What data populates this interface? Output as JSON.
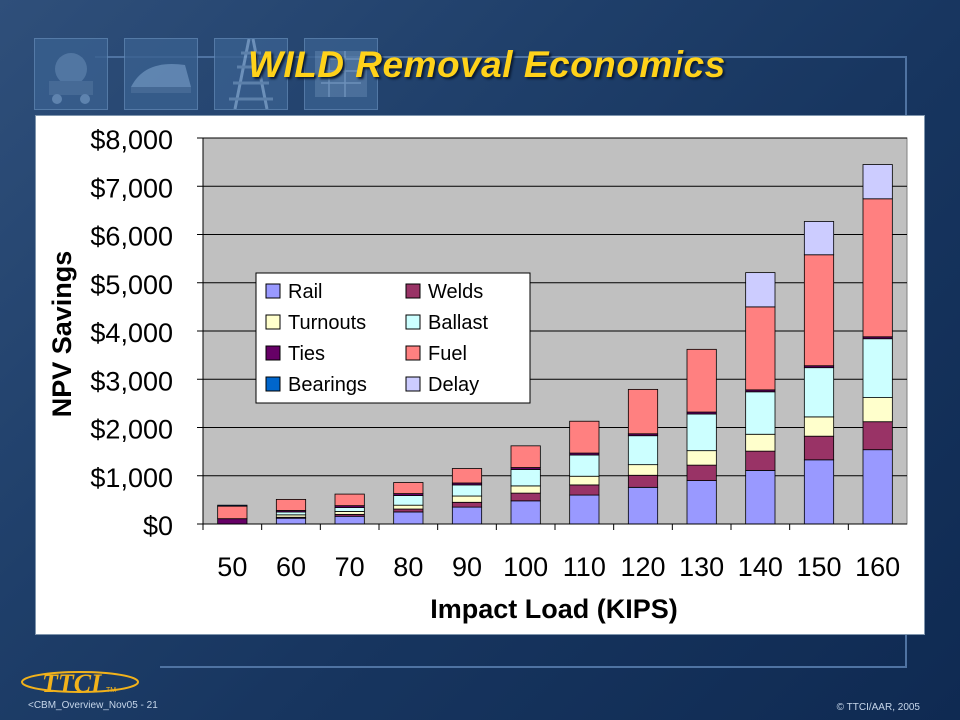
{
  "slide": {
    "title": "WILD Removal Economics",
    "footer_left": "<CBM_Overview_Nov05 - 21",
    "footer_right": "© TTCI/AAR, 2005",
    "logo_text": "TTCI",
    "logo_tm": "TM"
  },
  "chart_data": {
    "type": "bar",
    "stacked": true,
    "xlabel": "Impact Load (KIPS)",
    "ylabel": "NPV Savings",
    "ylim": [
      0,
      8000
    ],
    "yticks": [
      0,
      1000,
      2000,
      3000,
      4000,
      5000,
      6000,
      7000,
      8000
    ],
    "ytick_labels": [
      "$0",
      "$1,000",
      "$2,000",
      "$3,000",
      "$4,000",
      "$5,000",
      "$6,000",
      "$7,000",
      "$8,000"
    ],
    "grid": true,
    "legend_position": "center-left",
    "categories": [
      "50",
      "60",
      "70",
      "80",
      "90",
      "100",
      "110",
      "120",
      "130",
      "140",
      "150",
      "160"
    ],
    "series": [
      {
        "name": "Rail",
        "color": "#9999ff",
        "values": [
          0,
          120,
          160,
          250,
          350,
          480,
          600,
          760,
          900,
          1110,
          1330,
          1540
        ]
      },
      {
        "name": "Welds",
        "color": "#993366",
        "values": [
          0,
          20,
          40,
          60,
          100,
          160,
          210,
          250,
          320,
          400,
          490,
          580
        ]
      },
      {
        "name": "Turnouts",
        "color": "#ffffcc",
        "values": [
          0,
          50,
          60,
          80,
          130,
          150,
          180,
          220,
          300,
          350,
          400,
          500
        ]
      },
      {
        "name": "Ballast",
        "color": "#ccffff",
        "values": [
          0,
          60,
          80,
          200,
          230,
          340,
          440,
          600,
          760,
          880,
          1020,
          1220
        ]
      },
      {
        "name": "Ties",
        "color": "#660066",
        "values": [
          110,
          30,
          40,
          40,
          40,
          40,
          40,
          40,
          40,
          40,
          40,
          40
        ]
      },
      {
        "name": "Fuel",
        "color": "#ff8080",
        "values": [
          260,
          230,
          240,
          230,
          300,
          450,
          660,
          920,
          1300,
          1720,
          2300,
          2860
        ]
      },
      {
        "name": "Bearings",
        "color": "#0066cc",
        "values": [
          20,
          0,
          0,
          0,
          0,
          0,
          0,
          0,
          0,
          0,
          0,
          0
        ]
      },
      {
        "name": "Delay",
        "color": "#ccccff",
        "values": [
          0,
          0,
          0,
          0,
          0,
          0,
          0,
          0,
          0,
          710,
          690,
          710
        ]
      }
    ],
    "legend_order": [
      "Rail",
      "Welds",
      "Turnouts",
      "Ballast",
      "Ties",
      "Fuel",
      "Bearings",
      "Delay"
    ]
  }
}
